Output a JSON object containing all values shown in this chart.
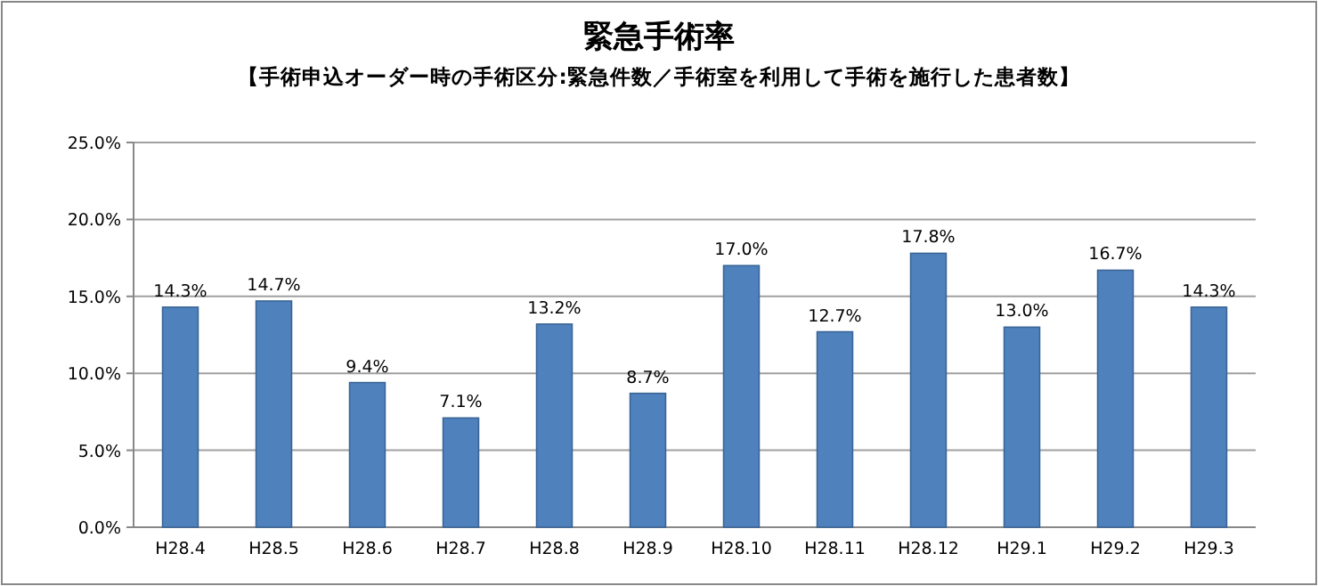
{
  "chart_data": {
    "type": "bar",
    "title": "緊急手術率",
    "subtitle": "【手術申込オーダー時の手術区分:緊急件数／手術室を利用して手術を施行した患者数】",
    "categories": [
      "H28.4",
      "H28.5",
      "H28.6",
      "H28.7",
      "H28.8",
      "H28.9",
      "H28.10",
      "H28.11",
      "H28.12",
      "H29.1",
      "H29.2",
      "H29.3"
    ],
    "values": [
      14.3,
      14.7,
      9.4,
      7.1,
      13.2,
      8.7,
      17.0,
      12.7,
      17.8,
      13.0,
      16.7,
      14.3
    ],
    "value_labels": [
      "14.3%",
      "14.7%",
      "9.4%",
      "7.1%",
      "13.2%",
      "8.7%",
      "17.0%",
      "12.7%",
      "17.8%",
      "13.0%",
      "16.7%",
      "14.3%"
    ],
    "color": "#4f81bd",
    "ylim": [
      0,
      25
    ],
    "yticks": [
      {
        "value": 0,
        "label": "0.0%"
      },
      {
        "value": 5,
        "label": "5.0%"
      },
      {
        "value": 10,
        "label": "10.0%"
      },
      {
        "value": 15,
        "label": "15.0%"
      },
      {
        "value": 20,
        "label": "20.0%"
      },
      {
        "value": 25,
        "label": "25.0%"
      }
    ],
    "grid": "y"
  }
}
